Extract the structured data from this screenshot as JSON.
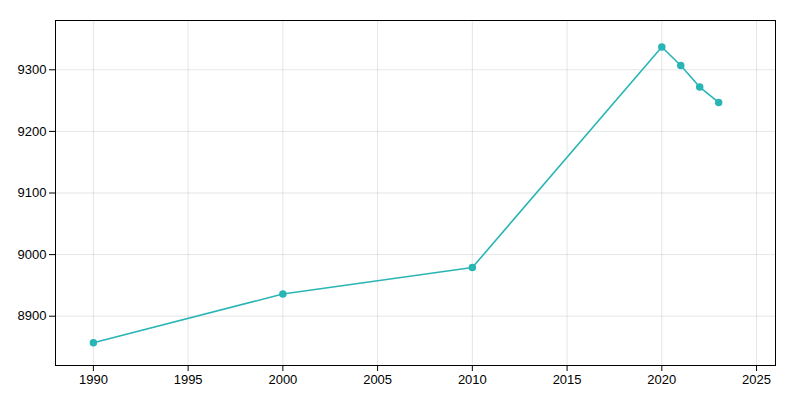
{
  "chart_data": {
    "type": "line",
    "x": [
      1990,
      2000,
      2010,
      2020,
      2021,
      2022,
      2023
    ],
    "values": [
      8857,
      8936,
      8979,
      9337,
      9307,
      9272,
      9247
    ],
    "color": "#2ab5b5",
    "marker": "circle",
    "xlim": [
      1988,
      2026
    ],
    "ylim": [
      8820,
      9380
    ],
    "xticks": [
      1990,
      1995,
      2000,
      2005,
      2010,
      2015,
      2020,
      2025
    ],
    "yticks": [
      8900,
      9000,
      9100,
      9200,
      9300
    ],
    "grid": true
  }
}
